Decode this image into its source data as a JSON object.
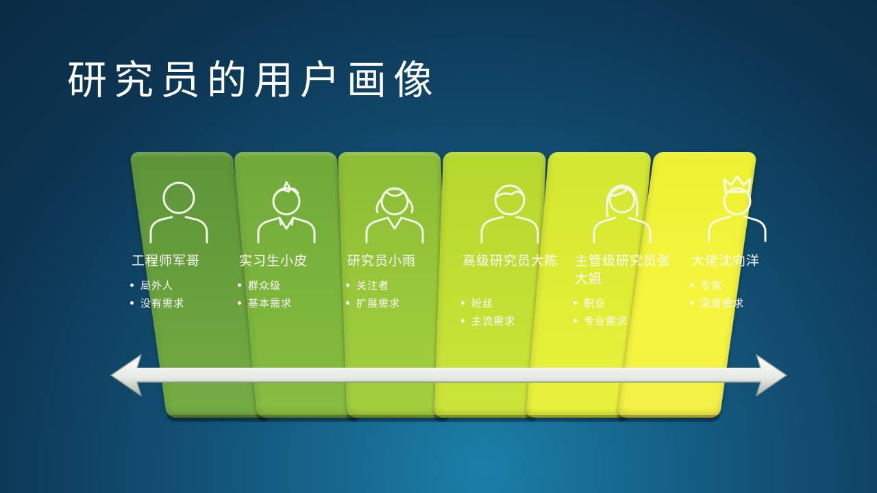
{
  "title": "研究员的用户画像",
  "personas": [
    {
      "name": "工程师军哥",
      "icon": "person-plain-icon",
      "bullets": [
        "局外人",
        "没有需求"
      ]
    },
    {
      "name": "实习生小皮",
      "icon": "boy-spiky-hair-icon",
      "bullets": [
        "群众级",
        "基本需求"
      ]
    },
    {
      "name": "研究员小雨",
      "icon": "girl-pigtails-icon",
      "bullets": [
        "关注者",
        "扩展需求"
      ]
    },
    {
      "name": "高级研究员大陈",
      "icon": "man-short-hair-icon",
      "bullets": [
        "粉丝",
        "主流需求"
      ]
    },
    {
      "name": "主管级研究员张大姐",
      "icon": "woman-long-hair-icon",
      "bullets": [
        "职业",
        "专业需求"
      ]
    },
    {
      "name": "大佬沈向洋",
      "icon": "person-crown-icon",
      "bullets": [
        "专家",
        "深度需求"
      ]
    }
  ],
  "colors": {
    "panel_1": "#6aa23d",
    "panel_2": "#7db63c",
    "panel_3": "#99c93a",
    "panel_4": "#c3e034",
    "panel_5": "#e1ee36",
    "panel_6": "#f5f53e",
    "arrow": "#e8ece6",
    "background": "#13557a"
  }
}
